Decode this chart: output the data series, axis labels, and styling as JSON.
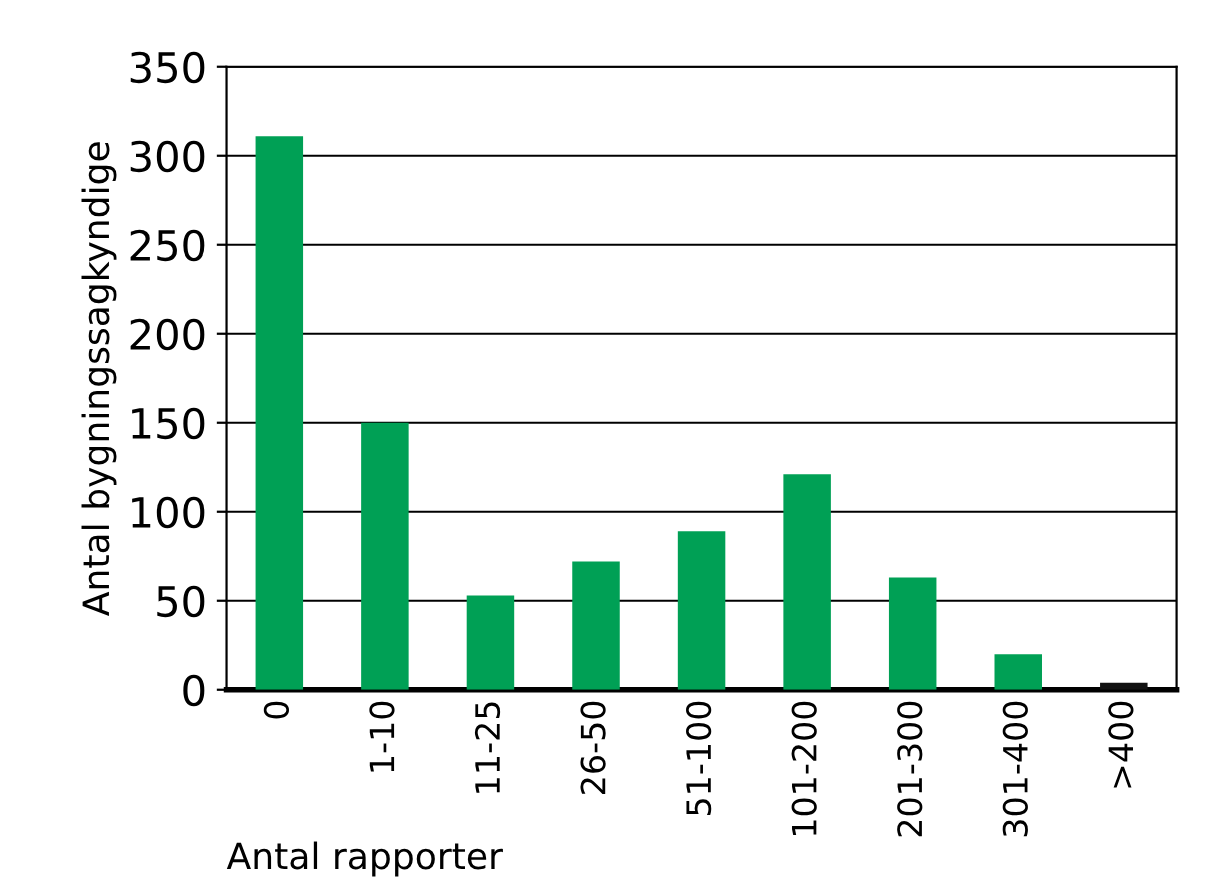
{
  "chart_data": {
    "type": "bar",
    "xlabel": "Antal rapporter",
    "ylabel": "Antal bygningssagkyndige",
    "categories": [
      "0",
      "1-10",
      "11-25",
      "26-50",
      "51-100",
      "101-200",
      "201-300",
      "301-400",
      ">400"
    ],
    "values": [
      311,
      150,
      53,
      72,
      89,
      121,
      63,
      20,
      4
    ],
    "colors": [
      "#00a055",
      "#00a055",
      "#00a055",
      "#00a055",
      "#00a055",
      "#00a055",
      "#00a055",
      "#00a055",
      "#111111"
    ],
    "ylim": [
      0,
      350
    ],
    "yticks": [
      0,
      50,
      100,
      150,
      200,
      250,
      300,
      350
    ],
    "grid": "y",
    "legend": false
  }
}
